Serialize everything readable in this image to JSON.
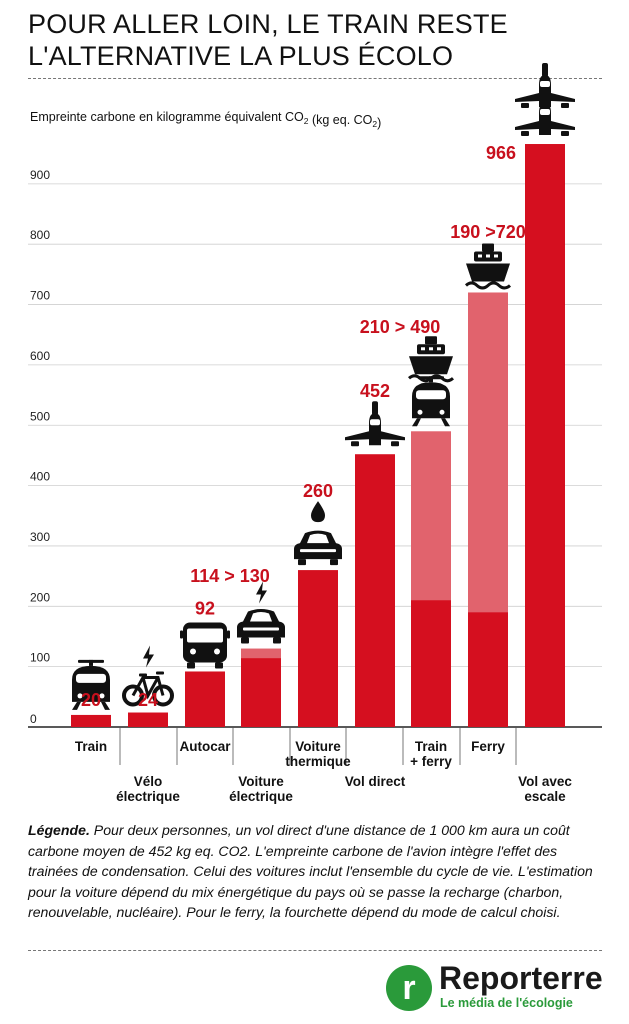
{
  "header": {
    "title_line1": "POUR ALLER LOIN, LE TRAIN RESTE",
    "title_line2": "L'ALTERNATIVE LA PLUS ÉCOLO"
  },
  "chart_data": {
    "type": "bar",
    "ylabel_main": "Empreinte carbone en kilogramme équivalent CO",
    "ylabel_sub": "2",
    "ylabel_mid": " (kg eq. CO",
    "ylabel_end": ")",
    "ylim": [
      0,
      1000
    ],
    "yticks": [
      0,
      100,
      200,
      300,
      400,
      500,
      600,
      700,
      800,
      900
    ],
    "categories": [
      {
        "label": [
          "Train"
        ],
        "low": 20,
        "high": 20,
        "value_label": "20",
        "icons": [
          "train-icon"
        ],
        "label_row": "top"
      },
      {
        "label": [
          "Vélo",
          "électrique"
        ],
        "low": 24,
        "high": 24,
        "value_label": "24",
        "icons": [
          "electric-bike-icon"
        ],
        "label_row": "bottom"
      },
      {
        "label": [
          "Autocar"
        ],
        "low": 92,
        "high": 92,
        "value_label": "92",
        "icons": [
          "bus-icon"
        ],
        "label_row": "top"
      },
      {
        "label": [
          "Voiture",
          "électrique"
        ],
        "low": 114,
        "high": 130,
        "value_label": "114 > 130",
        "icons": [
          "electric-car-icon"
        ],
        "label_row": "bottom"
      },
      {
        "label": [
          "Voiture",
          "thermique"
        ],
        "low": 260,
        "high": 260,
        "value_label": "260",
        "icons": [
          "fuel-car-icon"
        ],
        "label_row": "top"
      },
      {
        "label": [
          "Vol direct"
        ],
        "low": 452,
        "high": 452,
        "value_label": "452",
        "icons": [
          "plane-icon"
        ],
        "label_row": "bottom"
      },
      {
        "label": [
          "Train",
          "+ ferry"
        ],
        "low": 210,
        "high": 490,
        "value_label": "210 > 490",
        "icons": [
          "train-icon",
          "ship-icon"
        ],
        "label_row": "top"
      },
      {
        "label": [
          "Ferry"
        ],
        "low": 190,
        "high": 720,
        "value_label": "190 >720",
        "icons": [
          "ship-icon"
        ],
        "label_row": "top"
      },
      {
        "label": [
          "Vol avec",
          "escale"
        ],
        "low": 966,
        "high": 966,
        "value_label": "966",
        "icons": [
          "plane-icon",
          "plane-icon"
        ],
        "label_row": "bottom"
      }
    ]
  },
  "legend": {
    "heading": "Légende.",
    "text": " Pour deux personnes, un vol direct d'une distance de 1 000 km aura un coût carbone moyen de 452 kg eq. CO2. L'empreinte carbone de l'avion intègre l'effet des trainées de condensation. Celui des voitures inclut l'ensemble du cycle de vie. L'estimation pour la voiture dépend du mix énergétique du pays où se passe la recharge (charbon, renouvelable, nucléaire). Pour le ferry, la fourchette dépend du mode de calcul choisi."
  },
  "brand": {
    "mark": "r",
    "name": "Reporterre",
    "tagline": "Le média de l'écologie"
  },
  "colors": {
    "bar": "#d50f1f",
    "bar_light": "#e1636d",
    "value_text": "#c8101d",
    "grid": "#cfcfcf",
    "axis": "#222222",
    "icon": "#111111"
  }
}
